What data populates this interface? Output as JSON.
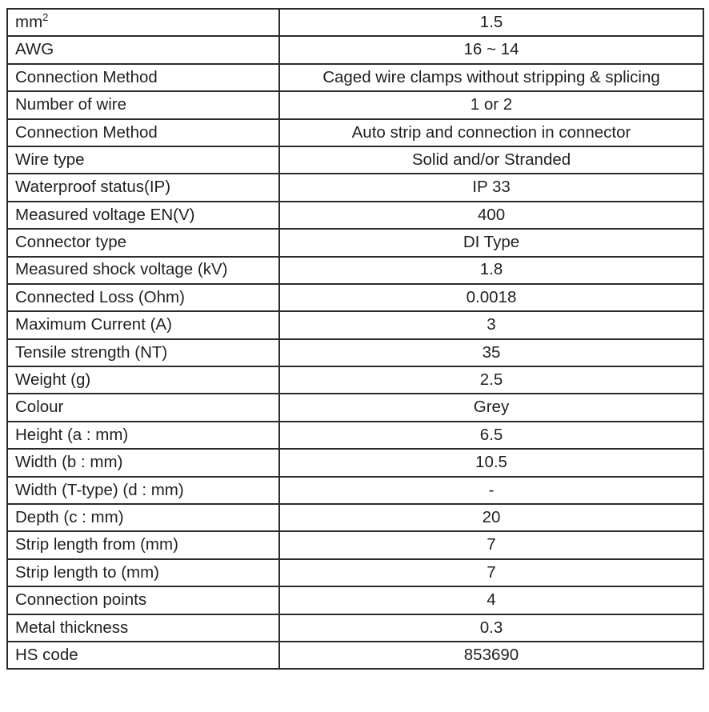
{
  "rows": [
    {
      "label": "mm",
      "label_sup": "2",
      "value": "1.5"
    },
    {
      "label": "AWG",
      "value": "16 ~ 14"
    },
    {
      "label": "Connection Method",
      "value": "Caged wire clamps without stripping & splicing"
    },
    {
      "label": "Number of wire",
      "value": "1 or 2"
    },
    {
      "label": "Connection Method",
      "value": "Auto strip and connection in connector"
    },
    {
      "label": "Wire type",
      "value": "Solid and/or Stranded"
    },
    {
      "label": "Waterproof status(IP)",
      "value": "IP 33"
    },
    {
      "label": "Measured voltage EN(V)",
      "value": "400"
    },
    {
      "label": "Connector type",
      "value": "DI Type"
    },
    {
      "label": "Measured shock voltage (kV)",
      "value": "1.8"
    },
    {
      "label": "Connected Loss (Ohm)",
      "value": "0.0018"
    },
    {
      "label": "Maximum Current (A)",
      "value": "3"
    },
    {
      "label": "Tensile strength (NT)",
      "value": "35"
    },
    {
      "label": "Weight (g)",
      "value": "2.5"
    },
    {
      "label": "Colour",
      "value": "Grey"
    },
    {
      "label": "Height (a : mm)",
      "value": "6.5"
    },
    {
      "label": "Width (b : mm)",
      "value": "10.5"
    },
    {
      "label": "Width (T-type) (d : mm)",
      "value": "-"
    },
    {
      "label": "Depth (c : mm)",
      "value": "20"
    },
    {
      "label": "Strip length from (mm)",
      "value": "7"
    },
    {
      "label": "Strip length to (mm)",
      "value": "7"
    },
    {
      "label": "Connection points",
      "value": "4"
    },
    {
      "label": "Metal thickness",
      "value": "0.3"
    },
    {
      "label": "HS code",
      "value": "853690"
    }
  ]
}
